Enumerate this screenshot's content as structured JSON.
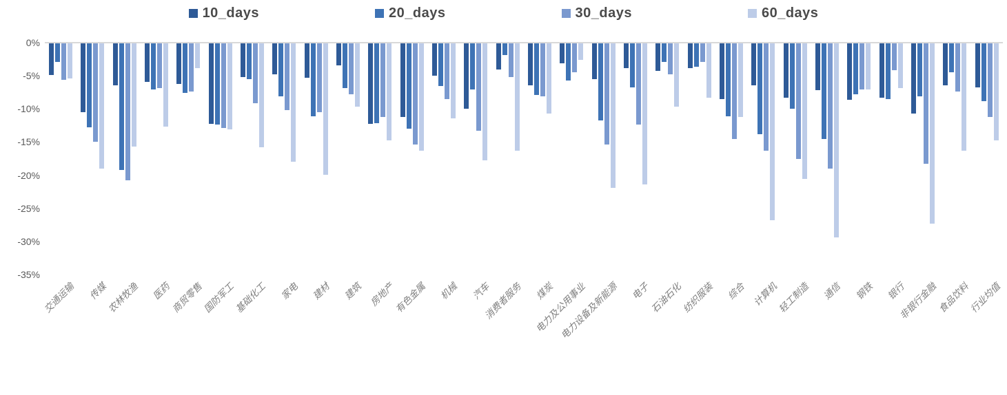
{
  "chart_data": {
    "type": "bar",
    "title": "",
    "xlabel": "",
    "ylabel": "",
    "ylim": [
      -35,
      0
    ],
    "grid": false,
    "legend_position": "top",
    "ytick_labels": [
      "0%",
      "-5%",
      "-10%",
      "-15%",
      "-20%",
      "-25%",
      "-30%",
      "-35%"
    ],
    "ytick_values": [
      0,
      -5,
      -10,
      -15,
      -20,
      -25,
      -30,
      -35
    ],
    "categories": [
      "交通运输",
      "传媒",
      "农林牧渔",
      "医药",
      "商贸零售",
      "国防军工",
      "基础化工",
      "家电",
      "建材",
      "建筑",
      "房地产",
      "有色金属",
      "机械",
      "汽车",
      "消费者服务",
      "煤炭",
      "电力及公用事业",
      "电力设备及新能源",
      "电子",
      "石油石化",
      "纺织服装",
      "综合",
      "计算机",
      "轻工制造",
      "通信",
      "钢铁",
      "银行",
      "非银行金融",
      "食品饮料",
      "行业均值"
    ],
    "series": [
      {
        "name": "10_days",
        "color": "#2e5a97",
        "values": [
          -4.9,
          -10.5,
          -6.4,
          -5.9,
          -6.2,
          -12.2,
          -5.2,
          -4.8,
          -5.3,
          -3.4,
          -12.3,
          -11.2,
          -5.0,
          -10.0,
          -4.0,
          -6.4,
          -3.1,
          -5.5,
          -3.8,
          -4.3,
          -3.8,
          -8.5,
          -6.4,
          -8.3,
          -7.2,
          -8.6,
          -8.3,
          -10.7,
          -6.4,
          -6.7
        ]
      },
      {
        "name": "20_days",
        "color": "#3e73b5",
        "values": [
          -2.9,
          -12.8,
          -19.2,
          -7.1,
          -7.6,
          -12.4,
          -5.5,
          -8.1,
          -11.1,
          -6.9,
          -12.1,
          -13.0,
          -6.5,
          -7.1,
          -1.9,
          -7.9,
          -5.7,
          -11.7,
          -6.7,
          -2.9,
          -3.6,
          -11.1,
          -13.8,
          -10.0,
          -14.5,
          -7.8,
          -8.5,
          -8.1,
          -4.5,
          -8.8
        ]
      },
      {
        "name": "30_days",
        "color": "#7a99cf",
        "values": [
          -5.6,
          -14.9,
          -20.8,
          -6.9,
          -7.4,
          -12.9,
          -9.1,
          -10.2,
          -10.5,
          -7.8,
          -11.2,
          -15.4,
          -8.5,
          -13.3,
          -5.2,
          -8.1,
          -4.5,
          -15.4,
          -12.4,
          -4.8,
          -2.9,
          -14.5,
          -16.3,
          -17.5,
          -19.0,
          -7.1,
          -4.1,
          -18.3,
          -7.4,
          -11.2
        ]
      },
      {
        "name": "60_days",
        "color": "#bdcce8",
        "values": [
          -5.4,
          -19.0,
          -15.7,
          -12.7,
          -3.8,
          -13.1,
          -15.8,
          -18.0,
          -19.9,
          -9.7,
          -14.7,
          -16.3,
          -11.4,
          -17.8,
          -16.3,
          -10.7,
          -2.6,
          -21.9,
          -21.4,
          -9.7,
          -8.3,
          -11.2,
          -26.8,
          -20.6,
          -29.4,
          -7.1,
          -6.8,
          -27.3,
          -16.3,
          -14.7
        ]
      }
    ]
  }
}
